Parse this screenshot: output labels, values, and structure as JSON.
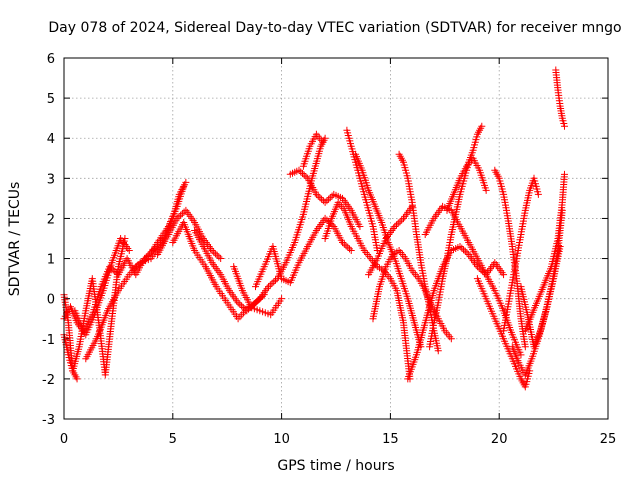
{
  "chart_data": {
    "type": "scatter",
    "title": "Day 078 of 2024, Sidereal Day-to-day VTEC variation (SDTVAR) for receiver mngo",
    "xlabel": "GPS time / hours",
    "ylabel": "SDTVAR / TECUs",
    "xlim": [
      0,
      25
    ],
    "ylim": [
      -3,
      6
    ],
    "xticks": [
      "0",
      "5",
      "10",
      "15",
      "20",
      "25"
    ],
    "yticks": [
      "-3",
      "-2",
      "-1",
      "0",
      "1",
      "2",
      "3",
      "4",
      "5",
      "6"
    ],
    "grid": true,
    "marker": "+",
    "color": "#ff0000",
    "tracks": [
      {
        "x": [
          0.0,
          0.3,
          0.6,
          1.0,
          1.4,
          1.8,
          2.2,
          2.6,
          3.0
        ],
        "y": [
          -0.5,
          -0.2,
          -0.6,
          -0.9,
          -0.4,
          0.2,
          0.9,
          1.5,
          1.2
        ]
      },
      {
        "x": [
          0.0,
          0.2,
          0.4,
          0.7,
          1.0,
          1.3,
          1.6,
          1.9,
          2.2,
          2.5,
          2.8
        ],
        "y": [
          0.1,
          -0.6,
          -1.8,
          -1.2,
          -0.3,
          0.5,
          -0.6,
          -1.9,
          -0.5,
          0.8,
          1.5
        ]
      },
      {
        "x": [
          0.0,
          0.2,
          0.4,
          0.6
        ],
        "y": [
          -0.9,
          -1.4,
          -1.8,
          -2.0
        ]
      },
      {
        "x": [
          0.5,
          0.9,
          1.3,
          1.7,
          2.1,
          2.5,
          2.9,
          3.3,
          3.7,
          4.1,
          4.5
        ],
        "y": [
          -0.3,
          -0.8,
          -0.4,
          0.3,
          0.8,
          0.6,
          1.0,
          0.6,
          1.0,
          1.2,
          1.5
        ]
      },
      {
        "x": [
          1.0,
          1.5,
          2.0,
          2.5,
          3.0,
          3.5,
          4.0,
          4.5,
          5.0,
          5.3,
          5.6
        ],
        "y": [
          -1.5,
          -1.0,
          -0.3,
          0.2,
          0.6,
          0.9,
          1.0,
          1.4,
          2.0,
          2.6,
          2.9
        ]
      },
      {
        "x": [
          3.3,
          3.8,
          4.3,
          4.8,
          5.2,
          5.5
        ],
        "y": [
          0.8,
          1.0,
          1.4,
          1.8,
          2.3,
          2.8
        ]
      },
      {
        "x": [
          4.3,
          4.8,
          5.2,
          5.6,
          6.0,
          6.4,
          6.8,
          7.2
        ],
        "y": [
          1.1,
          1.6,
          2.0,
          2.2,
          1.9,
          1.5,
          1.2,
          1.0
        ]
      },
      {
        "x": [
          5.0,
          5.5,
          6.0,
          6.5,
          7.0,
          7.5,
          8.0,
          8.5,
          9.0,
          9.5,
          10.0
        ],
        "y": [
          1.4,
          1.9,
          1.2,
          0.8,
          0.3,
          -0.1,
          -0.5,
          -0.2,
          -0.3,
          -0.4,
          0.0
        ]
      },
      {
        "x": [
          6.0,
          6.4,
          6.8,
          7.2,
          7.6,
          8.0,
          8.4,
          8.8,
          9.2
        ],
        "y": [
          1.7,
          1.3,
          0.9,
          0.6,
          0.2,
          -0.1,
          -0.3,
          -0.1,
          0.1
        ]
      },
      {
        "x": [
          7.8,
          8.2,
          8.6,
          9.0,
          9.4,
          9.8,
          10.2,
          10.6,
          11.0,
          11.4,
          11.8,
          12.0
        ],
        "y": [
          0.8,
          0.2,
          -0.2,
          0.0,
          0.3,
          0.5,
          0.9,
          1.4,
          2.1,
          3.0,
          3.8,
          4.0
        ]
      },
      {
        "x": [
          8.8,
          9.2,
          9.6,
          10.0,
          10.4,
          10.8,
          11.2,
          11.6,
          12.0,
          12.4,
          12.8,
          13.2
        ],
        "y": [
          0.3,
          0.8,
          1.3,
          0.5,
          0.4,
          0.9,
          1.3,
          1.7,
          2.0,
          1.8,
          1.4,
          1.2
        ]
      },
      {
        "x": [
          10.4,
          10.8,
          11.2,
          11.6,
          12.0,
          12.4,
          12.8,
          13.2,
          13.6
        ],
        "y": [
          3.1,
          3.2,
          3.0,
          2.6,
          2.4,
          2.6,
          2.5,
          2.2,
          1.8
        ]
      },
      {
        "x": [
          11.0,
          11.3,
          11.6,
          11.9
        ],
        "y": [
          3.3,
          3.8,
          4.1,
          3.9
        ]
      },
      {
        "x": [
          12.0,
          12.3,
          12.6,
          12.9,
          13.2,
          13.5,
          13.8,
          14.1,
          14.4,
          14.7,
          15.0,
          15.3,
          15.6,
          15.9
        ],
        "y": [
          1.5,
          2.0,
          2.4,
          2.2,
          1.8,
          1.5,
          1.2,
          1.0,
          0.8,
          0.7,
          0.5,
          0.2,
          -0.6,
          -2.0
        ]
      },
      {
        "x": [
          13.0,
          13.2,
          13.4,
          13.6,
          13.8,
          14.0,
          14.2,
          14.4
        ],
        "y": [
          4.2,
          3.8,
          3.4,
          3.0,
          2.6,
          2.2,
          1.8,
          1.2
        ]
      },
      {
        "x": [
          13.4,
          13.7,
          14.0,
          14.3,
          14.6,
          14.9,
          15.2,
          15.5,
          15.8,
          16.1,
          16.4
        ],
        "y": [
          3.6,
          3.2,
          2.7,
          2.3,
          1.9,
          1.4,
          1.0,
          0.5,
          0.0,
          -0.6,
          -1.2
        ]
      },
      {
        "x": [
          14.2,
          14.5,
          14.8,
          15.1,
          15.4,
          15.7,
          16.0,
          16.3,
          16.6,
          16.9,
          17.2,
          17.5,
          17.8
        ],
        "y": [
          -0.5,
          0.3,
          0.8,
          1.1,
          1.2,
          1.0,
          0.7,
          0.5,
          0.2,
          -0.2,
          -0.5,
          -0.8,
          -1.0
        ]
      },
      {
        "x": [
          14.0,
          14.4,
          14.8,
          15.2,
          15.6,
          16.0
        ],
        "y": [
          0.6,
          1.0,
          1.5,
          1.8,
          2.0,
          2.3
        ]
      },
      {
        "x": [
          15.4,
          15.6,
          15.8,
          16.0,
          16.2,
          16.4,
          16.6,
          16.8,
          17.0,
          17.2
        ],
        "y": [
          3.6,
          3.4,
          3.0,
          2.4,
          1.6,
          0.9,
          0.3,
          -0.2,
          -0.8,
          -1.3
        ]
      },
      {
        "x": [
          15.8,
          16.2,
          16.6,
          17.0,
          17.4,
          17.8,
          18.2,
          18.6,
          19.0,
          19.4,
          19.8,
          20.2
        ],
        "y": [
          -2.0,
          -1.4,
          -0.6,
          0.2,
          0.8,
          1.2,
          1.3,
          1.1,
          0.8,
          0.6,
          0.9,
          0.6
        ]
      },
      {
        "x": [
          16.8,
          17.0,
          17.2,
          17.4,
          17.6,
          17.8,
          18.0,
          18.2,
          18.4,
          18.6,
          18.8,
          19.0,
          19.2
        ],
        "y": [
          -1.2,
          -0.6,
          -0.1,
          0.5,
          1.0,
          1.6,
          2.1,
          2.6,
          3.0,
          3.4,
          3.7,
          4.1,
          4.3
        ]
      },
      {
        "x": [
          16.6,
          17.0,
          17.4,
          17.8,
          18.2,
          18.6,
          19.0,
          19.4,
          19.8,
          20.2,
          20.6,
          21.0
        ],
        "y": [
          1.6,
          2.0,
          2.3,
          2.2,
          1.8,
          1.4,
          1.0,
          0.6,
          0.2,
          -0.3,
          -0.9,
          -1.4
        ]
      },
      {
        "x": [
          17.6,
          17.9,
          18.2,
          18.5,
          18.8,
          19.1,
          19.4
        ],
        "y": [
          2.2,
          2.6,
          3.0,
          3.3,
          3.5,
          3.2,
          2.7
        ]
      },
      {
        "x": [
          19.8,
          20.0,
          20.2,
          20.4,
          20.6,
          20.8,
          21.0,
          21.2
        ],
        "y": [
          3.2,
          3.0,
          2.6,
          2.0,
          1.3,
          0.5,
          -0.5,
          -1.2
        ]
      },
      {
        "x": [
          19.0,
          19.4,
          19.8,
          20.2,
          20.6,
          21.0,
          21.2,
          21.4
        ],
        "y": [
          0.5,
          0.0,
          -0.5,
          -1.0,
          -1.5,
          -2.0,
          -2.2,
          -1.8
        ]
      },
      {
        "x": [
          20.2,
          20.4,
          20.6,
          20.8,
          21.0,
          21.2,
          21.4,
          21.6,
          21.8
        ],
        "y": [
          -0.8,
          -0.2,
          0.4,
          1.0,
          1.6,
          2.2,
          2.7,
          3.0,
          2.6
        ]
      },
      {
        "x": [
          20.6,
          20.9,
          21.2,
          21.5,
          21.8,
          22.1,
          22.4,
          22.7,
          22.9
        ],
        "y": [
          -1.2,
          -1.6,
          -1.9,
          -1.5,
          -1.0,
          -0.4,
          0.3,
          1.2,
          2.2
        ]
      },
      {
        "x": [
          21.2,
          21.5,
          21.8,
          22.1,
          22.4,
          22.7,
          22.9,
          23.0
        ],
        "y": [
          -0.8,
          -0.4,
          0.0,
          0.4,
          0.8,
          1.5,
          2.4,
          3.1
        ]
      },
      {
        "x": [
          21.0,
          21.3,
          21.6,
          21.9,
          22.2,
          22.5,
          22.8
        ],
        "y": [
          0.3,
          -0.4,
          -1.2,
          -0.8,
          -0.2,
          0.5,
          1.3
        ]
      },
      {
        "x": [
          22.6,
          22.7,
          22.8,
          22.9,
          23.0
        ],
        "y": [
          5.7,
          5.2,
          4.8,
          4.5,
          4.3
        ]
      }
    ]
  }
}
